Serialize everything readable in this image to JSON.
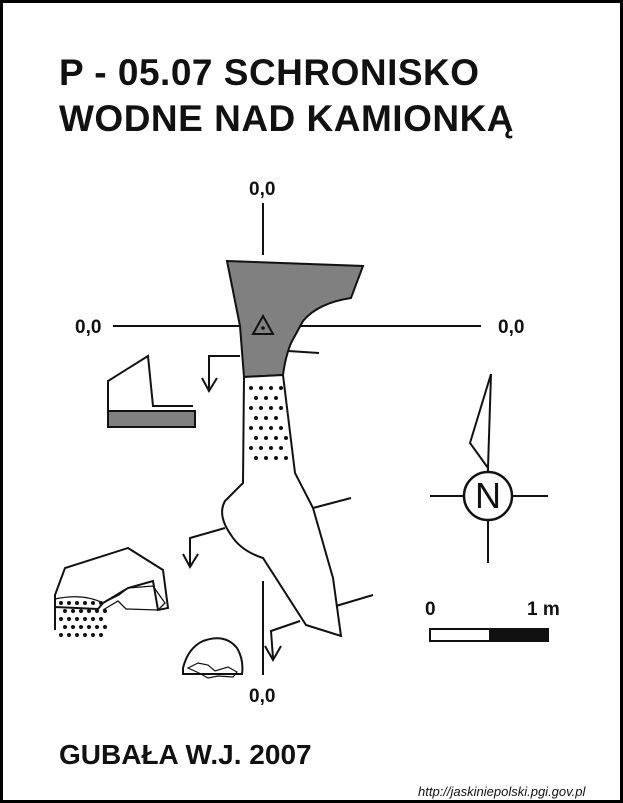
{
  "title": {
    "line1": "P - 05.07  SCHRONISKO",
    "line2": "WODNE NAD KAMIONKĄ"
  },
  "axis_labels": {
    "top": "0,0",
    "left": "0,0",
    "right": "0,0",
    "bottom": "0,0"
  },
  "compass": {
    "letter": "N",
    "icon": "north-arrow-icon"
  },
  "scale_bar": {
    "start_label": "0",
    "end_label": "1 m"
  },
  "author": "GUBAŁA W.J. 2007",
  "source_url": "http://jaskiniepolski.pgi.gov.pl",
  "colors": {
    "ink": "#111111",
    "shaded_area": "#808080",
    "background": "#ffffff"
  }
}
